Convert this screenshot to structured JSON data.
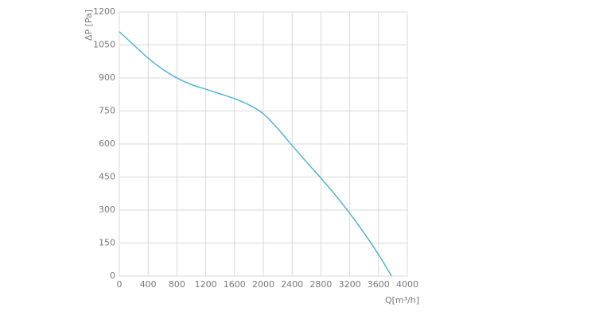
{
  "chart_data": {
    "type": "line",
    "x_label": "Q[m³/h]",
    "y_label": "ΔP [Pa]",
    "x": [
      0,
      200,
      400,
      600,
      800,
      1000,
      1200,
      1400,
      1600,
      1800,
      2000,
      2200,
      2400,
      2600,
      2800,
      3000,
      3200,
      3400,
      3600,
      3780
    ],
    "series": [
      {
        "name": "ΔP",
        "color": "#4aafd0",
        "values": [
          1110,
          1050,
          990,
          940,
          900,
          870,
          849,
          828,
          806,
          778,
          737,
          670,
          593,
          518,
          445,
          368,
          285,
          195,
          98,
          0
        ]
      }
    ],
    "xlim": [
      0,
      4000
    ],
    "xticks": [
      0,
      400,
      800,
      1200,
      1600,
      2000,
      2400,
      2800,
      3200,
      3600,
      4000
    ],
    "ylim": [
      0,
      1200
    ],
    "yticks": [
      0,
      150,
      300,
      450,
      600,
      750,
      900,
      1050,
      1200
    ],
    "grid": true
  }
}
